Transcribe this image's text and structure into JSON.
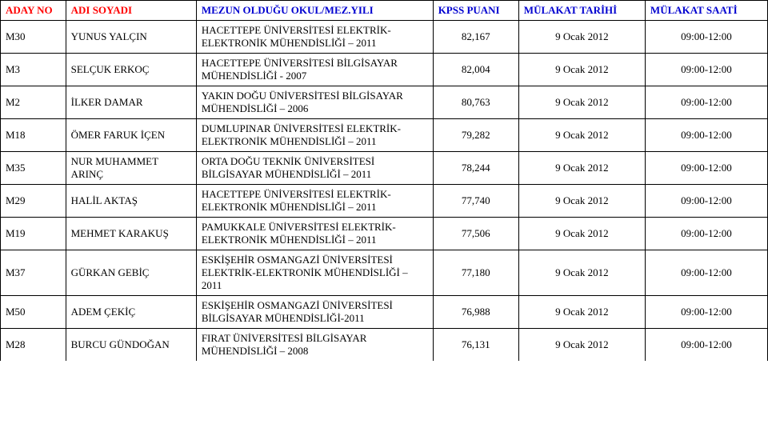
{
  "header_colors": {
    "red": "#ff0000",
    "blue": "#0000d0"
  },
  "columns": {
    "no": "ADAY NO",
    "name": "ADI SOYADI",
    "school": "MEZUN OLDUĞU OKUL/MEZ.YILI",
    "score": "KPSS PUANI",
    "date": "MÜLAKAT TARİHİ",
    "time": "MÜLAKAT SAATİ"
  },
  "rows": [
    {
      "no": "M30",
      "name": "YUNUS YALÇIN",
      "school": "HACETTEPE ÜNİVERSİTESİ ELEKTRİK-ELEKTRONİK MÜHENDİSLİĞİ – 2011",
      "score": "82,167",
      "date": "9 Ocak 2012",
      "time": "09:00-12:00"
    },
    {
      "no": "M3",
      "name": "SELÇUK ERKOÇ",
      "school": "HACETTEPE ÜNİVERSİTESİ BİLGİSAYAR MÜHENDİSLİĞİ - 2007",
      "score": "82,004",
      "date": "9 Ocak 2012",
      "time": "09:00-12:00"
    },
    {
      "no": "M2",
      "name": "İLKER DAMAR",
      "school": "YAKIN DOĞU ÜNİVERSİTESİ BİLGİSAYAR MÜHENDİSLİĞİ – 2006",
      "score": "80,763",
      "date": "9 Ocak 2012",
      "time": "09:00-12:00"
    },
    {
      "no": "M18",
      "name": "ÖMER FARUK İÇEN",
      "school": "DUMLUPINAR ÜNİVERSİTESİ ELEKTRİK-ELEKTRONİK MÜHENDİSLİĞİ – 2011",
      "score": "79,282",
      "date": "9 Ocak 2012",
      "time": "09:00-12:00"
    },
    {
      "no": "M35",
      "name": "NUR MUHAMMET ARINÇ",
      "school": "ORTA DOĞU TEKNİK  ÜNİVERSİTESİ BİLGİSAYAR MÜHENDİSLİĞİ – 2011",
      "score": "78,244",
      "date": "9 Ocak 2012",
      "time": "09:00-12:00"
    },
    {
      "no": "M29",
      "name": "HALİL AKTAŞ",
      "school": "HACETTEPE ÜNİVERSİTESİ ELEKTRİK-ELEKTRONİK MÜHENDİSLİĞİ – 2011",
      "score": "77,740",
      "date": "9 Ocak 2012",
      "time": "09:00-12:00"
    },
    {
      "no": "M19",
      "name": "MEHMET KARAKUŞ",
      "school": "PAMUKKALE ÜNİVERSİTESİ ELEKTRİK-ELEKTRONİK MÜHENDİSLİĞİ – 2011",
      "score": "77,506",
      "date": "9 Ocak 2012",
      "time": "09:00-12:00"
    },
    {
      "no": "M37",
      "name": "GÜRKAN GEBİÇ",
      "school": "ESKİŞEHİR OSMANGAZİ ÜNİVERSİTESİ ELEKTRİK-ELEKTRONİK MÜHENDİSLİĞİ – 2011",
      "score": "77,180",
      "date": "9 Ocak 2012",
      "time": "09:00-12:00"
    },
    {
      "no": "M50",
      "name": "ADEM ÇEKİÇ",
      "school": "ESKİŞEHİR OSMANGAZİ ÜNİVERSİTESİ BİLGİSAYAR MÜHENDİSLİĞİ-2011",
      "score": "76,988",
      "date": "9 Ocak 2012",
      "time": "09:00-12:00"
    },
    {
      "no": "M28",
      "name": "BURCU GÜNDOĞAN",
      "school": "FIRAT  ÜNİVERSİTESİ BİLGİSAYAR MÜHENDİSLİĞİ – 2008",
      "score": "76,131",
      "date": "9 Ocak 2012",
      "time": "09:00-12:00"
    }
  ]
}
